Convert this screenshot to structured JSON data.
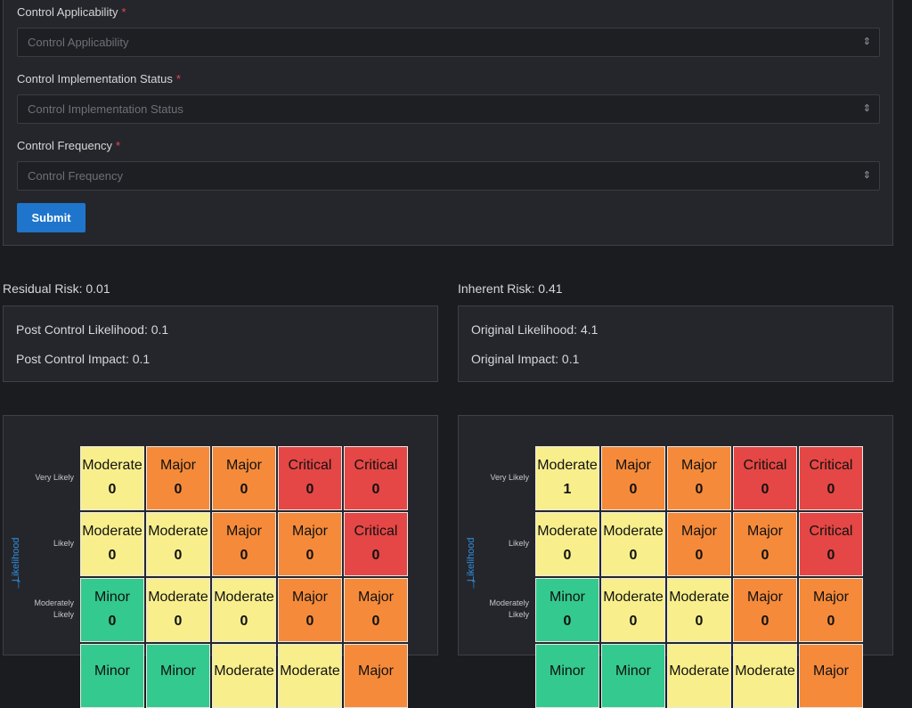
{
  "form": {
    "fields": [
      {
        "label": "Control Applicability",
        "required_mark": "*",
        "placeholder": "Control Applicability"
      },
      {
        "label": "Control Implementation Status",
        "required_mark": "*",
        "placeholder": "Control Implementation Status"
      },
      {
        "label": "Control Frequency",
        "required_mark": "*",
        "placeholder": "Control Frequency"
      }
    ],
    "submit_label": "Submit"
  },
  "residual": {
    "title": "Residual Risk: 0.01",
    "likelihood": "Post Control Likelihood: 0.1",
    "impact": "Post Control Impact: 0.1"
  },
  "inherent": {
    "title": "Inherent Risk: 0.41",
    "likelihood": "Original Likelihood: 4.1",
    "impact": "Original Impact: 0.1"
  },
  "matrix_axis_title": "Likelihood",
  "row_labels": [
    "Very Likely",
    "Likely",
    "Moderately Likely",
    ""
  ],
  "residual_matrix": [
    [
      {
        "l": "Moderate",
        "c": "0"
      },
      {
        "l": "Major",
        "c": "0"
      },
      {
        "l": "Major",
        "c": "0"
      },
      {
        "l": "Critical",
        "c": "0"
      },
      {
        "l": "Critical",
        "c": "0"
      }
    ],
    [
      {
        "l": "Moderate",
        "c": "0"
      },
      {
        "l": "Moderate",
        "c": "0"
      },
      {
        "l": "Major",
        "c": "0"
      },
      {
        "l": "Major",
        "c": "0"
      },
      {
        "l": "Critical",
        "c": "0"
      }
    ],
    [
      {
        "l": "Minor",
        "c": "0"
      },
      {
        "l": "Moderate",
        "c": "0"
      },
      {
        "l": "Moderate",
        "c": "0"
      },
      {
        "l": "Major",
        "c": "0"
      },
      {
        "l": "Major",
        "c": "0"
      }
    ],
    [
      {
        "l": "Minor",
        "c": ""
      },
      {
        "l": "Minor",
        "c": ""
      },
      {
        "l": "Moderate",
        "c": ""
      },
      {
        "l": "Moderate",
        "c": ""
      },
      {
        "l": "Major",
        "c": ""
      }
    ]
  ],
  "inherent_matrix": [
    [
      {
        "l": "Moderate",
        "c": "1"
      },
      {
        "l": "Major",
        "c": "0"
      },
      {
        "l": "Major",
        "c": "0"
      },
      {
        "l": "Critical",
        "c": "0"
      },
      {
        "l": "Critical",
        "c": "0"
      }
    ],
    [
      {
        "l": "Moderate",
        "c": "0"
      },
      {
        "l": "Moderate",
        "c": "0"
      },
      {
        "l": "Major",
        "c": "0"
      },
      {
        "l": "Major",
        "c": "0"
      },
      {
        "l": "Critical",
        "c": "0"
      }
    ],
    [
      {
        "l": "Minor",
        "c": "0"
      },
      {
        "l": "Moderate",
        "c": "0"
      },
      {
        "l": "Moderate",
        "c": "0"
      },
      {
        "l": "Major",
        "c": "0"
      },
      {
        "l": "Major",
        "c": "0"
      }
    ],
    [
      {
        "l": "Minor",
        "c": ""
      },
      {
        "l": "Minor",
        "c": ""
      },
      {
        "l": "Moderate",
        "c": ""
      },
      {
        "l": "Moderate",
        "c": ""
      },
      {
        "l": "Major",
        "c": ""
      }
    ]
  ],
  "colors": {
    "Moderate": "#f8ef8c",
    "Major": "#f58a3a",
    "Critical": "#e44745",
    "Minor": "#34c98e",
    "submit": "#1f75cb",
    "required": "#e5484d"
  },
  "icons": {
    "select_chevron": "chevron-up-down-icon",
    "axis_arrow": "arrow-up-icon"
  }
}
